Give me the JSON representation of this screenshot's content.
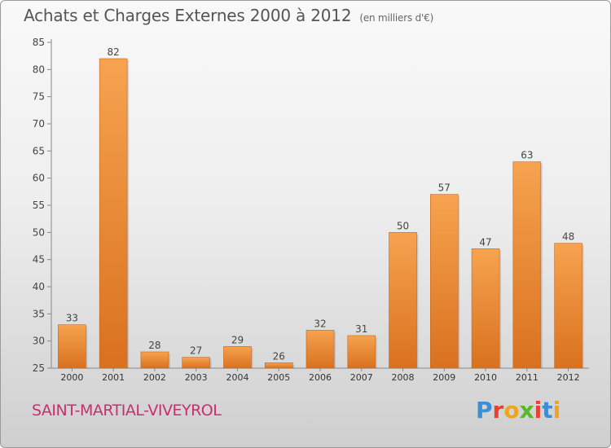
{
  "chart_data": {
    "type": "bar",
    "title": "Achats et Charges Externes 2000 à 2012",
    "subtitle": "(en milliers d'€)",
    "categories": [
      "2000",
      "2001",
      "2002",
      "2003",
      "2004",
      "2005",
      "2006",
      "2007",
      "2008",
      "2009",
      "2010",
      "2011",
      "2012"
    ],
    "values": [
      33,
      82,
      28,
      27,
      29,
      26,
      32,
      31,
      50,
      57,
      47,
      63,
      48
    ],
    "ylim": [
      25,
      85
    ],
    "yticks": [
      25,
      30,
      35,
      40,
      45,
      50,
      55,
      60,
      65,
      70,
      75,
      80,
      85
    ],
    "grid": false,
    "bar_color_top": "#f6a34f",
    "bar_color_bottom": "#d9711f"
  },
  "footer": {
    "town": "SAINT-MARTIAL-VIVEYROL",
    "town_color": "#c8306a",
    "logo_letters": [
      "P",
      "r",
      "o",
      "x",
      "i",
      "t",
      "i"
    ],
    "logo_colors": [
      "#3a8fd6",
      "#e8412e",
      "#f2a21c",
      "#5ab52f",
      "#e8412e",
      "#3a8fd6",
      "#f2a21c"
    ]
  }
}
